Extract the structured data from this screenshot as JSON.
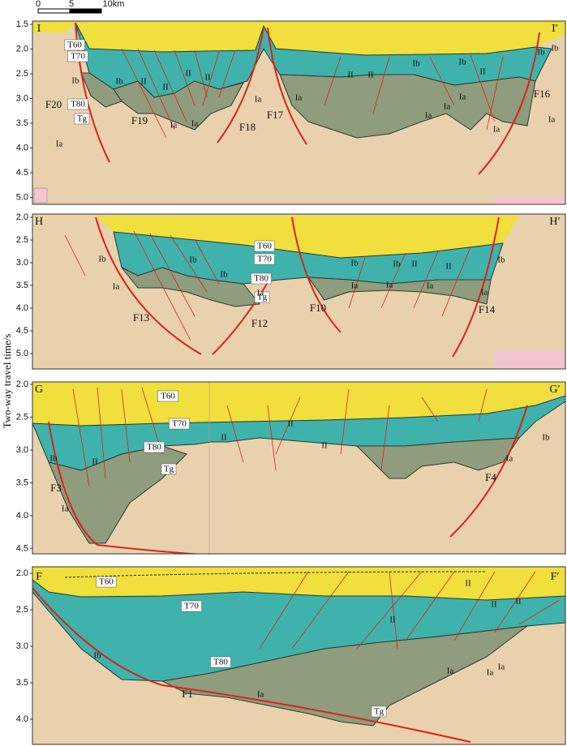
{
  "scale_bar": {
    "labels": [
      "0",
      "5",
      "10km"
    ]
  },
  "y_axis_label": "Two-way travel time/s",
  "panels": [
    {
      "left_label": "I",
      "right_label": "I′",
      "ticks": [
        "1.5",
        "2.0",
        "2.5",
        "3.0",
        "3.5",
        "4.0",
        "4.5",
        "5.0"
      ],
      "labels": [
        "T60",
        "T70",
        "T80",
        "Tg",
        "F20",
        "F19",
        "F18",
        "F17",
        "F16",
        "Ib",
        "Ib",
        "II",
        "II",
        "II",
        "II",
        "Ia",
        "Ia",
        "Ia",
        "Ia",
        "II",
        "II",
        "Ib",
        "Ib",
        "II",
        "Ia",
        "Ia",
        "Ia",
        "Ia",
        "Ia",
        "Ib",
        "Ib",
        "Ia"
      ]
    },
    {
      "left_label": "H",
      "right_label": "H′",
      "ticks": [
        "2.0",
        "2.5",
        "3.0",
        "3.5",
        "4.0",
        "4.5",
        "5.0"
      ],
      "labels": [
        "T60",
        "T70",
        "T80",
        "Tg",
        "F13",
        "F12",
        "F10",
        "F14",
        "Ib",
        "Ib",
        "Ib",
        "Ib",
        "Ib",
        "II",
        "II",
        "Ib",
        "Ia",
        "Ia",
        "Ia",
        "Ia",
        "Ia",
        "Ia"
      ]
    },
    {
      "left_label": "G",
      "right_label": "G′",
      "ticks": [
        "2.0",
        "2.5",
        "3.0",
        "3.5",
        "4.0",
        "4.5"
      ],
      "labels": [
        "T60",
        "T70",
        "T80",
        "Tg",
        "F3",
        "F4",
        "Ib",
        "II",
        "II",
        "II",
        "II",
        "Ia",
        "Ia",
        "Ib"
      ]
    },
    {
      "left_label": "F",
      "right_label": "F′",
      "ticks": [
        "2.0",
        "2.5",
        "3.0",
        "3.5",
        "4.0"
      ],
      "labels": [
        "T60",
        "T70",
        "T80",
        "Tg",
        "F1",
        "Ib",
        "Ia",
        "II",
        "II",
        "II",
        "II",
        "Ia",
        "Ia",
        "Ia"
      ]
    }
  ]
}
